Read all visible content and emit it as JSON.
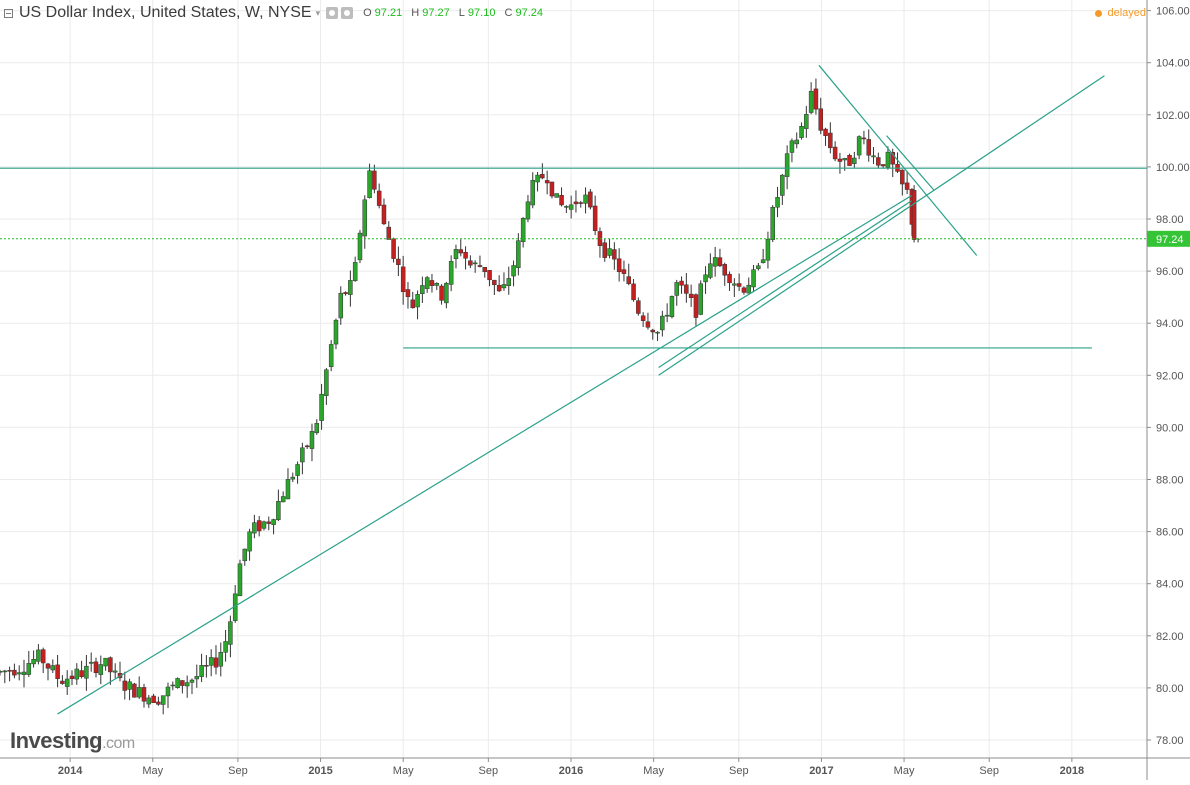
{
  "header": {
    "title": "US Dollar Index, United States, W, NYSE",
    "caret": "▾",
    "ohlc": [
      {
        "key": "O",
        "value": "97.21"
      },
      {
        "key": "H",
        "value": "97.27"
      },
      {
        "key": "L",
        "value": "97.10"
      },
      {
        "key": "C",
        "value": "97.24"
      }
    ],
    "status": "delayed"
  },
  "logo": {
    "brand": "Investing",
    "suffix": ".com"
  },
  "colors": {
    "up": "#2ca52c",
    "down": "#c42020",
    "wick": "#333333",
    "trendline": "#2aa189",
    "price_line": "#1dbd1d",
    "price_tag": "#35c435",
    "grid": "#ebebeb",
    "axis_text": "#555555"
  },
  "chart_data": {
    "type": "candlestick",
    "ylim": [
      77,
      106.4
    ],
    "xlim": [
      2013.72,
      2018.3
    ],
    "y_ticks": [
      "78.00",
      "80.00",
      "82.00",
      "84.00",
      "86.00",
      "88.00",
      "90.00",
      "92.00",
      "94.00",
      "96.00",
      "98.00",
      "100.00",
      "102.00",
      "104.00",
      "106.00"
    ],
    "x_ticks": [
      {
        "label": "2014",
        "x": 2014.0
      },
      {
        "label": "May",
        "x": 2014.33
      },
      {
        "label": "Sep",
        "x": 2014.67
      },
      {
        "label": "2015",
        "x": 2015.0
      },
      {
        "label": "May",
        "x": 2015.33
      },
      {
        "label": "Sep",
        "x": 2015.67
      },
      {
        "label": "2016",
        "x": 2016.0
      },
      {
        "label": "May",
        "x": 2016.33
      },
      {
        "label": "Sep",
        "x": 2016.67
      },
      {
        "label": "2017",
        "x": 2017.0
      },
      {
        "label": "May",
        "x": 2017.33
      },
      {
        "label": "Sep",
        "x": 2017.67
      },
      {
        "label": "2018",
        "x": 2018.0
      }
    ],
    "last_price": "97.24",
    "last_value": 97.24,
    "anchors": [
      [
        2013.72,
        80.6
      ],
      [
        2013.8,
        80.8
      ],
      [
        2013.88,
        81.2
      ],
      [
        2013.96,
        80.3
      ],
      [
        2014.05,
        80.6
      ],
      [
        2014.13,
        81.0
      ],
      [
        2014.2,
        80.2
      ],
      [
        2014.28,
        79.8
      ],
      [
        2014.35,
        79.6
      ],
      [
        2014.42,
        80.1
      ],
      [
        2014.5,
        80.4
      ],
      [
        2014.58,
        81.0
      ],
      [
        2014.63,
        82.0
      ],
      [
        2014.67,
        84.5
      ],
      [
        2014.72,
        86.0
      ],
      [
        2014.8,
        86.5
      ],
      [
        2014.85,
        87.5
      ],
      [
        2014.92,
        88.8
      ],
      [
        2014.98,
        90.0
      ],
      [
        2015.03,
        92.5
      ],
      [
        2015.08,
        95.0
      ],
      [
        2015.13,
        95.5
      ],
      [
        2015.17,
        98.5
      ],
      [
        2015.2,
        100.0
      ],
      [
        2015.25,
        97.8
      ],
      [
        2015.3,
        96.5
      ],
      [
        2015.36,
        94.5
      ],
      [
        2015.42,
        96.0
      ],
      [
        2015.48,
        95.0
      ],
      [
        2015.55,
        97.0
      ],
      [
        2015.6,
        96.2
      ],
      [
        2015.65,
        96.2
      ],
      [
        2015.72,
        95.0
      ],
      [
        2015.78,
        96.5
      ],
      [
        2015.83,
        99.0
      ],
      [
        2015.9,
        99.8
      ],
      [
        2015.95,
        98.5
      ],
      [
        2016.0,
        98.5
      ],
      [
        2016.05,
        99.0
      ],
      [
        2016.12,
        97.0
      ],
      [
        2016.2,
        96.0
      ],
      [
        2016.27,
        94.5
      ],
      [
        2016.35,
        93.6
      ],
      [
        2016.42,
        95.5
      ],
      [
        2016.5,
        94.5
      ],
      [
        2016.55,
        96.5
      ],
      [
        2016.62,
        96.0
      ],
      [
        2016.68,
        95.3
      ],
      [
        2016.75,
        96.0
      ],
      [
        2016.8,
        98.0
      ],
      [
        2016.87,
        100.5
      ],
      [
        2016.92,
        101.5
      ],
      [
        2016.96,
        102.8
      ],
      [
        2017.0,
        101.5
      ],
      [
        2017.05,
        100.5
      ],
      [
        2017.1,
        100.0
      ],
      [
        2017.16,
        101.2
      ],
      [
        2017.22,
        100.2
      ],
      [
        2017.27,
        100.3
      ],
      [
        2017.31,
        99.4
      ],
      [
        2017.35,
        98.9
      ],
      [
        2017.37,
        97.24
      ]
    ],
    "trendlines": [
      {
        "x1": 2013.95,
        "y1": 79.0,
        "x2": 2017.36,
        "y2": 98.9
      },
      {
        "x1": 2016.35,
        "y1": 92.3,
        "x2": 2017.36,
        "y2": 98.7
      },
      {
        "x1": 2016.35,
        "y1": 92.0,
        "x2": 2018.13,
        "y2": 103.5
      },
      {
        "x1": 2016.99,
        "y1": 103.9,
        "x2": 2017.62,
        "y2": 96.6
      },
      {
        "x1": 2017.26,
        "y1": 101.2,
        "x2": 2017.45,
        "y2": 99.1
      },
      {
        "x1": 2013.72,
        "y1": 99.95,
        "x2": 2018.3,
        "y2": 99.95
      },
      {
        "x1": 2015.33,
        "y1": 93.05,
        "x2": 2018.08,
        "y2": 93.05
      }
    ]
  }
}
